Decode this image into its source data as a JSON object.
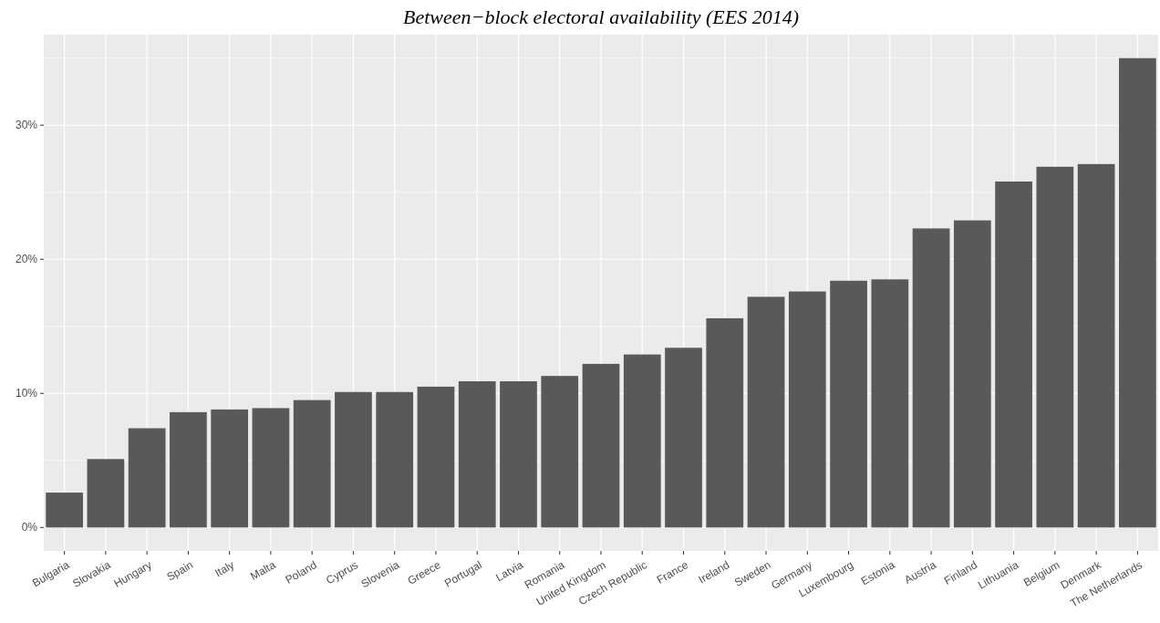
{
  "chart_data": {
    "type": "bar",
    "title": "Between−block electoral availability (EES 2014)",
    "categories": [
      "Bulgaria",
      "Slovakia",
      "Hungary",
      "Spain",
      "Italy",
      "Malta",
      "Poland",
      "Cyprus",
      "Slovenia",
      "Greece",
      "Portugal",
      "Latvia",
      "Romania",
      "United Kingdom",
      "Czech Republic",
      "France",
      "Ireland",
      "Sweden",
      "Germany",
      "Luxembourg",
      "Estonia",
      "Austria",
      "Finland",
      "Lithuania",
      "Belgium",
      "Denmark",
      "The Netherlands"
    ],
    "values": [
      2.6,
      5.1,
      7.4,
      8.6,
      8.8,
      8.9,
      9.5,
      10.1,
      10.1,
      10.5,
      10.9,
      10.9,
      11.3,
      12.2,
      12.9,
      13.4,
      15.6,
      17.2,
      17.6,
      18.4,
      18.5,
      22.3,
      22.9,
      25.8,
      26.9,
      27.1,
      35
    ],
    "color": "#595959",
    "ylim": [
      -1.75,
      36.75
    ],
    "yticks": [
      {
        "value": 0,
        "label": "0%"
      },
      {
        "value": 10,
        "label": "10%"
      },
      {
        "value": 20,
        "label": "20%"
      },
      {
        "value": 30,
        "label": "30%"
      }
    ],
    "grid": true
  }
}
